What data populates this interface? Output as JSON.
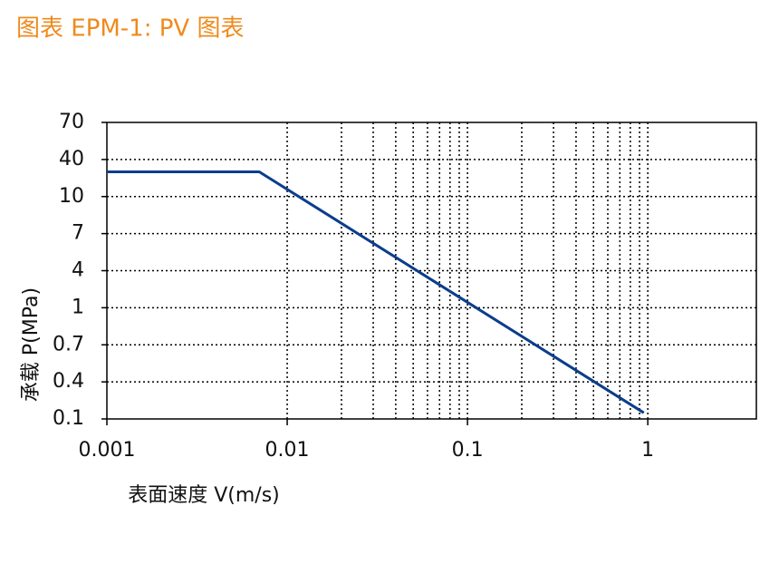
{
  "chart_data": {
    "type": "line",
    "title": "图表 EPM-1: PV 图表",
    "x_label": "表面速度 V(m/s)",
    "y_label": "承载 P(MPa)",
    "x": [
      0.001,
      0.007,
      0.95
    ],
    "values": [
      30,
      30,
      0.15
    ],
    "color": "#0b3d8c",
    "x_scale": "log",
    "xlim": [
      0.001,
      4
    ],
    "xticks": [
      0.001,
      0.01,
      0.1,
      1
    ],
    "xminorticks": [
      0.02,
      0.03,
      0.04,
      0.05,
      0.06,
      0.07,
      0.08,
      0.09,
      0.2,
      0.3,
      0.4,
      0.5,
      0.6,
      0.7,
      0.8,
      0.9
    ],
    "y_scale": "decade-linear",
    "ylim": [
      0.1,
      70
    ],
    "yticks": [
      0.1,
      0.4,
      0.7,
      1,
      4,
      7,
      10,
      40,
      70
    ],
    "grid": true
  }
}
